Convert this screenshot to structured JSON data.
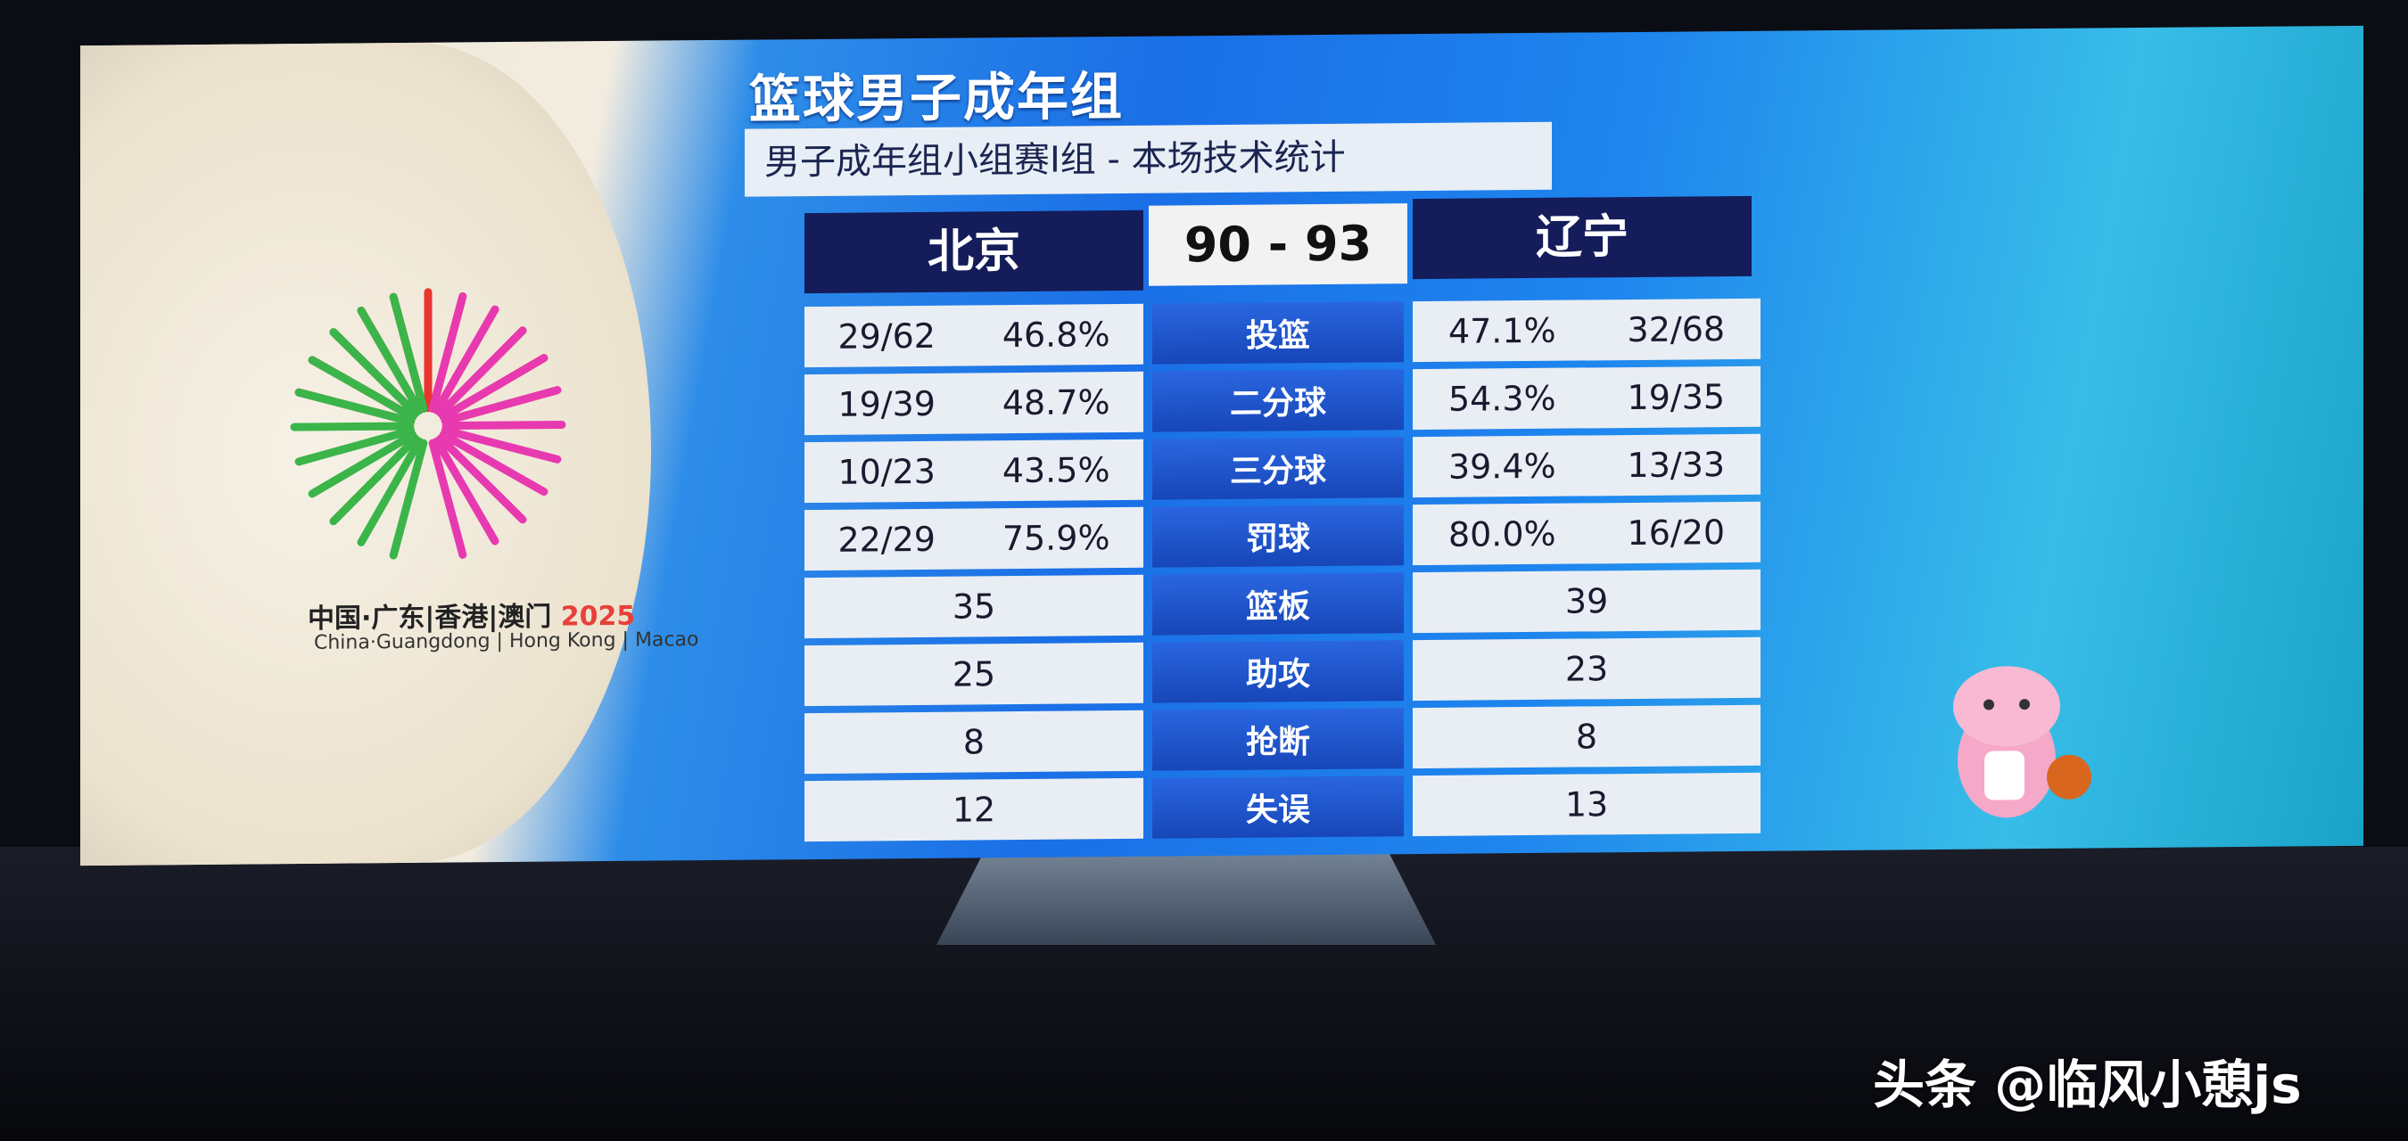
{
  "header": {
    "title": "篮球男子成年组",
    "subtitle": "男子成年组小组赛I组 - 本场技术统计"
  },
  "teams": {
    "home": "北京",
    "away": "辽宁",
    "score": "90 - 93"
  },
  "stats": [
    {
      "label": "投篮",
      "home": [
        "29/62",
        "46.8%"
      ],
      "away": [
        "47.1%",
        "32/68"
      ]
    },
    {
      "label": "二分球",
      "home": [
        "19/39",
        "48.7%"
      ],
      "away": [
        "54.3%",
        "19/35"
      ]
    },
    {
      "label": "三分球",
      "home": [
        "10/23",
        "43.5%"
      ],
      "away": [
        "39.4%",
        "13/33"
      ]
    },
    {
      "label": "罚球",
      "home": [
        "22/29",
        "75.9%"
      ],
      "away": [
        "80.0%",
        "16/20"
      ]
    },
    {
      "label": "篮板",
      "home": [
        "35"
      ],
      "away": [
        "39"
      ]
    },
    {
      "label": "助攻",
      "home": [
        "25"
      ],
      "away": [
        "23"
      ]
    },
    {
      "label": "抢断",
      "home": [
        "8"
      ],
      "away": [
        "8"
      ]
    },
    {
      "label": "失误",
      "home": [
        "12"
      ],
      "away": [
        "13"
      ]
    }
  ],
  "logo": {
    "cn": "中国·广东|香港|澳门",
    "year": "2025",
    "en": "China·Guangdong | Hong Kong | Macao"
  },
  "watermark": "头条 @临风小憩js",
  "colors": {
    "team_header": "#141c5a",
    "label_blue": "#1f56cc",
    "cell": "#e9eef4"
  }
}
